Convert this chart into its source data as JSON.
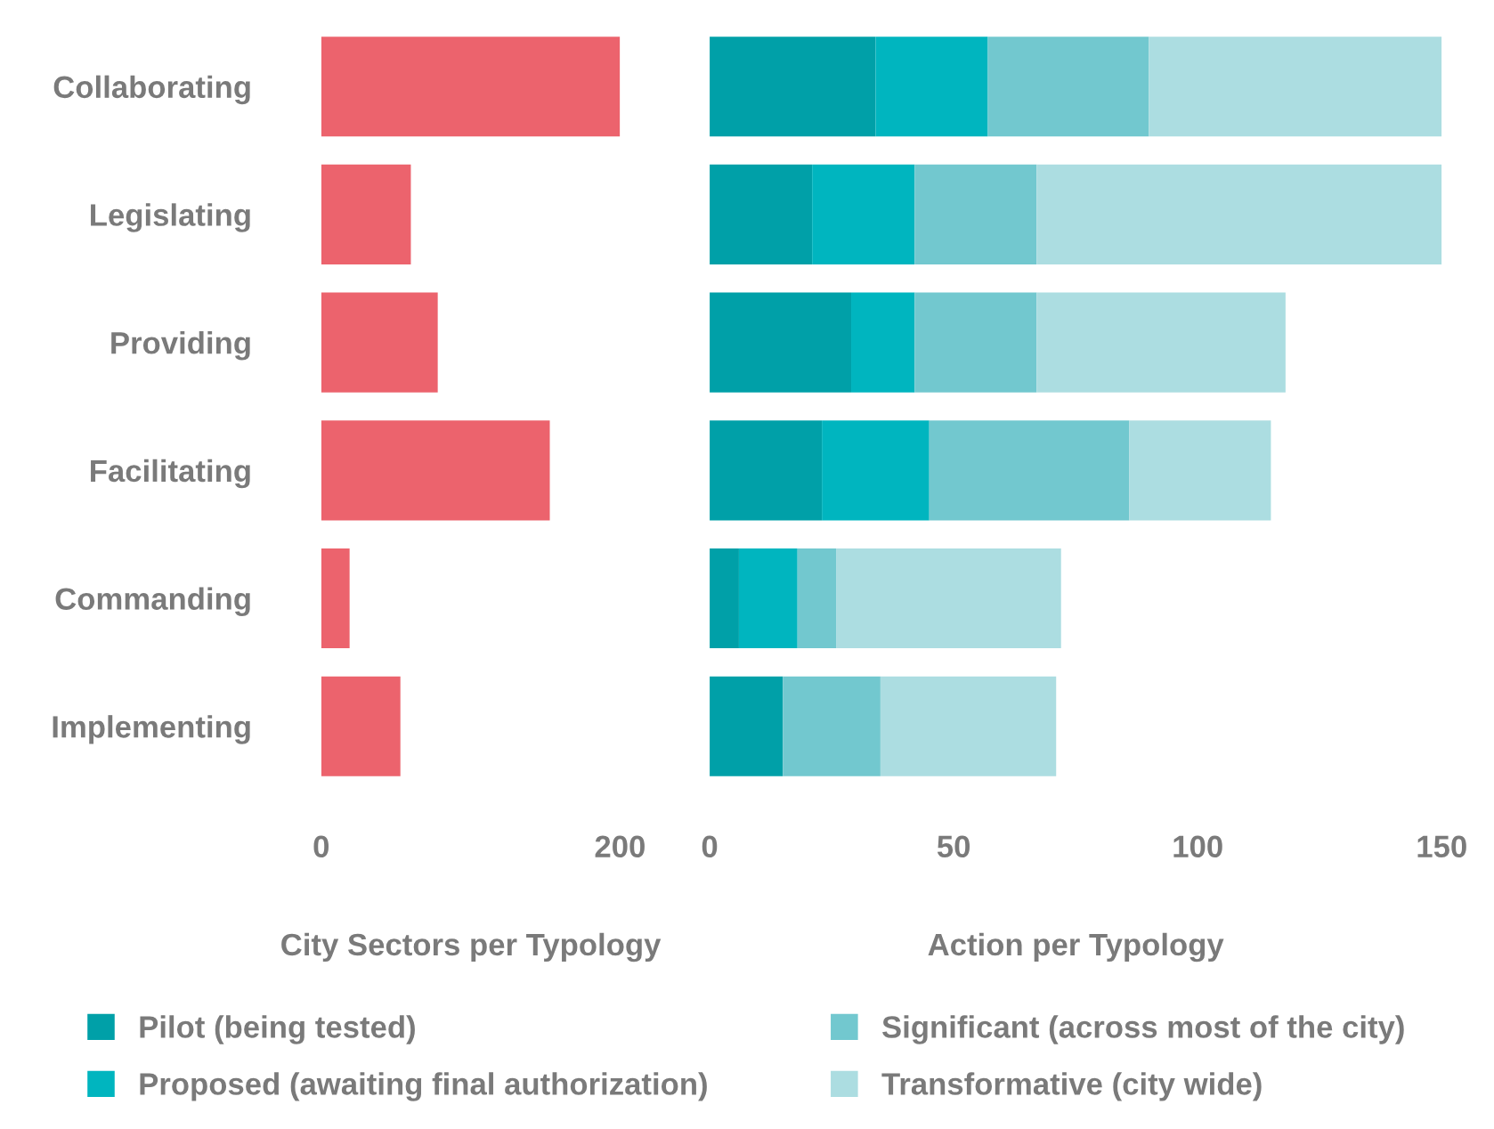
{
  "chart_data": [
    {
      "type": "bar",
      "orientation": "horizontal",
      "xlabel": "City Sectors per Typology",
      "categories": [
        "Collaborating",
        "Legislating",
        "Providing",
        "Facilitating",
        "Commanding",
        "Implementing"
      ],
      "values": [
        200,
        60,
        78,
        153,
        19,
        53
      ],
      "color": "#ec636d",
      "xlim": [
        0,
        200
      ],
      "xticks": [
        0,
        200
      ],
      "grid": false,
      "legend": false
    },
    {
      "type": "bar",
      "orientation": "horizontal",
      "stacked": true,
      "xlabel": "Action per Typology",
      "series": [
        {
          "name": "Pilot (being tested)",
          "color": "#00a0a8",
          "values": [
            34,
            21,
            29,
            23,
            6,
            15
          ]
        },
        {
          "name": "Proposed (awaiting final authorization)",
          "color": "#00b5bf",
          "values": [
            23,
            21,
            13,
            22,
            12,
            0
          ]
        },
        {
          "name": "Significant (across most of the city)",
          "color": "#72c8cf",
          "values": [
            33,
            25,
            25,
            41,
            8,
            20
          ]
        },
        {
          "name": "Transformative (city wide)",
          "color": "#acdde1",
          "values": [
            60,
            83,
            51,
            29,
            46,
            36
          ]
        }
      ],
      "xlim": [
        0,
        150
      ],
      "xticks": [
        0,
        50,
        100,
        150
      ],
      "tick_labels": "x",
      "grid": false,
      "legend": "bottom"
    }
  ]
}
